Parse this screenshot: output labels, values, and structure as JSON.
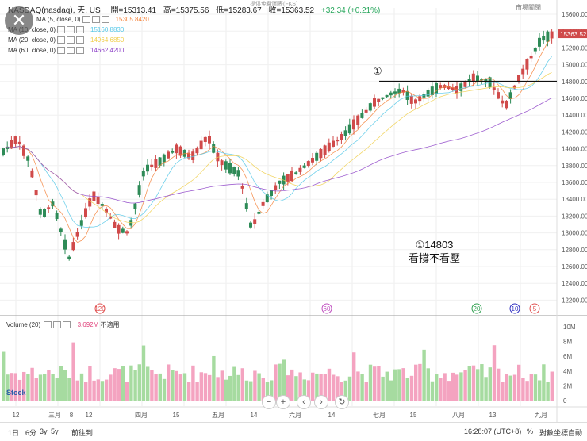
{
  "header": {
    "symbol": "NASDAQ(nasdaq), 天, US",
    "open_label": "開=15313.41",
    "high_label": "高=15375.56",
    "low_label": "低=15283.67",
    "close_label": "收=15363.52",
    "change_label": "+32.34 (+0.21%)",
    "sub_small": "提供免費圖表(FKS)",
    "market_closed": "市場關閉"
  },
  "ma_indicators": [
    {
      "label": "MA (5, close, 0)",
      "value": "15305.8420",
      "color": "#f5833a"
    },
    {
      "label": "MA (10, close, 0)",
      "value": "15160.8830",
      "color": "#56c8e8"
    },
    {
      "label": "MA (20, close, 0)",
      "value": "14964.6850",
      "color": "#f0cf4e"
    },
    {
      "label": "MA (60, close, 0)",
      "value": "14662.4200",
      "color": "#8e44c8"
    }
  ],
  "price_axis": [
    "15600.00",
    "15400.00",
    "15200.00",
    "15000.00",
    "14800.00",
    "14600.00",
    "14400.00",
    "14200.00",
    "14000.00",
    "13800.00",
    "13600.00",
    "13400.00",
    "13200.00",
    "13000.00",
    "12800.00",
    "12600.00",
    "12400.00",
    "12200.00"
  ],
  "current_price_tag": "15363.52",
  "volume_axis": [
    "10M",
    "8M",
    "6M",
    "4M",
    "2M",
    "0"
  ],
  "volume_header": {
    "label": "Volume (20)",
    "value": "3.692M",
    "status": "不適用"
  },
  "date_axis": [
    "12",
    "三月",
    "8",
    "12",
    "四月",
    "15",
    "五月",
    "14",
    "六月",
    "14",
    "七月",
    "15",
    "八月",
    "13",
    "九月"
  ],
  "badges": [
    {
      "text": "120",
      "color": "#e05050"
    },
    {
      "text": "60",
      "color": "#c050c0"
    },
    {
      "text": "20",
      "color": "#30a050"
    },
    {
      "text": "10",
      "color": "#3030c0"
    },
    {
      "text": "5",
      "color": "#e05050"
    }
  ],
  "annotation": {
    "marker": "①",
    "line1": "①14803",
    "line2": "看撐不看壓"
  },
  "nav_buttons": [
    "−",
    "+",
    "‹",
    "›",
    "↻"
  ],
  "bottom_bar": {
    "ranges": [
      "1日",
      "6分",
      "3y",
      "5y"
    ],
    "goto": "前往到...",
    "time": "16:28:07 (UTC+8)",
    "percent": "%",
    "log": "對數坐標",
    "auto": "自動"
  },
  "logo_text": "Stock",
  "colors": {
    "up": "#2e8b57",
    "down": "#d04a4a",
    "vol_up": "#a6dba0",
    "vol_down": "#f4a3c0"
  }
}
